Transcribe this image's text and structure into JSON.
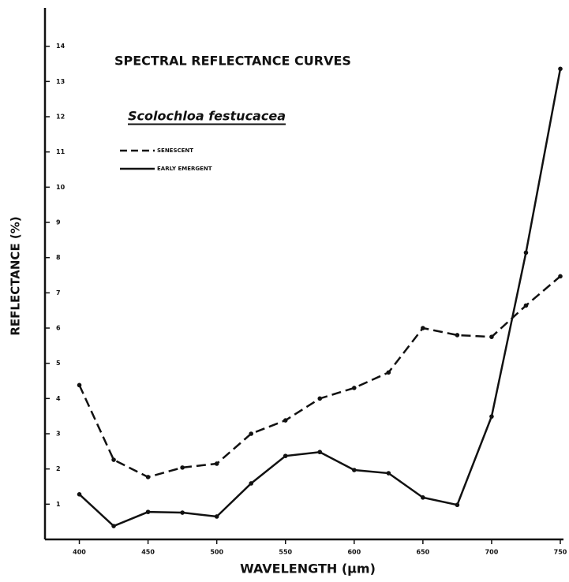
{
  "chart_data": {
    "type": "line",
    "title": "SPECTRAL REFLECTANCE CURVES",
    "subtitle": "Scolochloa festucacea",
    "x_label": "WAVELENGTH (µm)",
    "y_label": "REFLECTANCE (%)",
    "x": [
      400,
      425,
      450,
      475,
      500,
      525,
      550,
      575,
      600,
      625,
      650,
      675,
      700,
      725,
      750
    ],
    "series": [
      {
        "name": "SENESCENT",
        "color": "#111111",
        "line_style": "dashed",
        "values": [
          4.38,
          2.26,
          1.77,
          2.04,
          2.15,
          3.0,
          3.38,
          4.0,
          4.3,
          4.74,
          6.0,
          5.8,
          5.75,
          6.64,
          7.47
        ]
      },
      {
        "name": "EARLY EMERGENT",
        "color": "#111111",
        "line_style": "solid",
        "values": [
          1.28,
          0.38,
          0.78,
          0.76,
          0.65,
          1.59,
          2.37,
          2.48,
          1.97,
          1.88,
          1.19,
          0.98,
          3.49,
          8.14,
          13.36
        ]
      }
    ],
    "xlim": [
      375,
      750
    ],
    "xticks": [
      400,
      450,
      500,
      550,
      600,
      650,
      700,
      750
    ],
    "ylim": [
      0,
      15
    ],
    "yticks": [
      1,
      2,
      3,
      4,
      5,
      6,
      7,
      8,
      9,
      10,
      11,
      12,
      13,
      14
    ]
  }
}
